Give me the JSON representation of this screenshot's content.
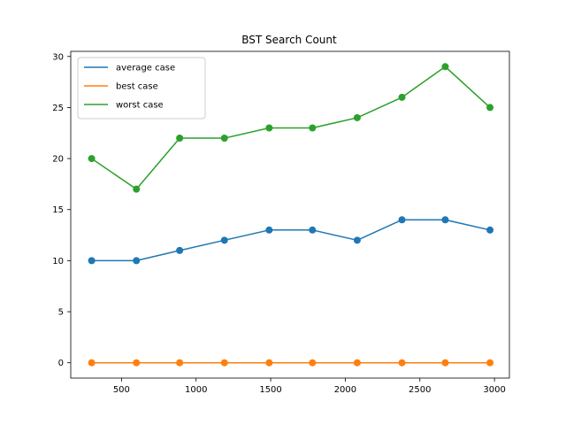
{
  "chart_data": {
    "type": "line",
    "title": "BST Search Count",
    "xlabel": "",
    "ylabel": "",
    "xlim": [
      160,
      3100
    ],
    "ylim": [
      -1.5,
      30.5
    ],
    "xticks": [
      500,
      1000,
      1500,
      2000,
      2500,
      3000
    ],
    "xtick_labels": [
      "500",
      "1000",
      "1500",
      "2000",
      "2500",
      "3000"
    ],
    "yticks": [
      0,
      5,
      10,
      15,
      20,
      25,
      30
    ],
    "ytick_labels": [
      "0",
      "5",
      "10",
      "15",
      "20",
      "25",
      "30"
    ],
    "grid": false,
    "legend_position": "top-left",
    "x": [
      300,
      600,
      890,
      1190,
      1490,
      1780,
      2080,
      2380,
      2670,
      2970
    ],
    "series": [
      {
        "name": "average case",
        "color": "#1f77b4",
        "values": [
          10,
          10,
          11,
          12,
          13,
          13,
          12,
          14,
          14,
          13
        ]
      },
      {
        "name": "best case",
        "color": "#ff7f0e",
        "values": [
          0,
          0,
          0,
          0,
          0,
          0,
          0,
          0,
          0,
          0
        ]
      },
      {
        "name": "worst case",
        "color": "#2ca02c",
        "values": [
          20,
          17,
          22,
          22,
          23,
          23,
          24,
          26,
          29,
          25
        ]
      }
    ]
  }
}
